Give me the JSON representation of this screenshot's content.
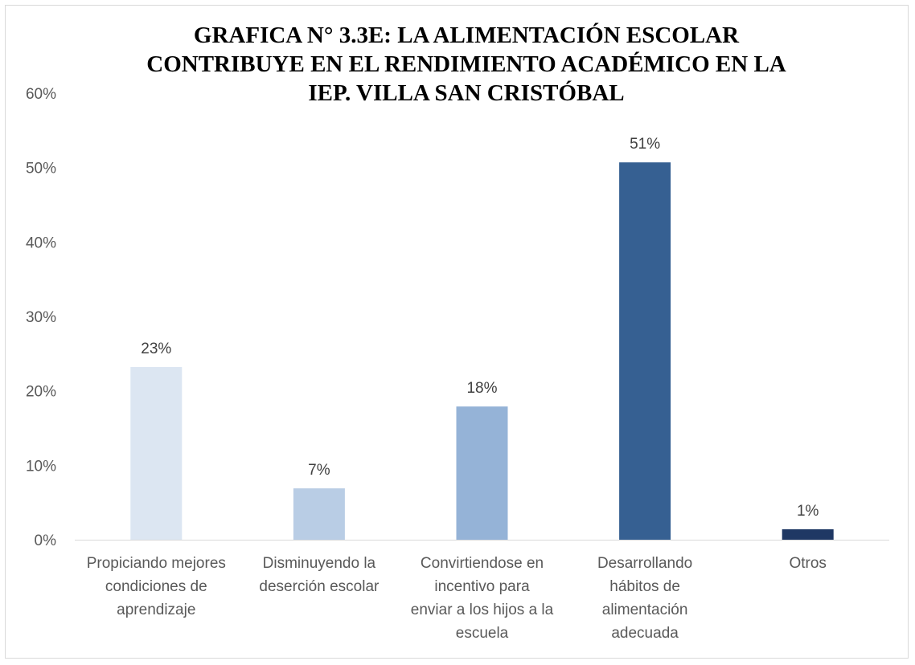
{
  "chart_data": {
    "type": "bar",
    "title_lines": [
      "GRAFICA N° 3.3E: LA ALIMENTACIÓN ESCOLAR",
      "CONTRIBUYE EN EL RENDIMIENTO ACADÉMICO EN LA",
      "IEP. VILLA SAN CRISTÓBAL"
    ],
    "categories": [
      [
        "Propiciando mejores",
        "condiciones de",
        "aprendizaje"
      ],
      [
        "Disminuyendo la",
        "deserción escolar"
      ],
      [
        "Convirtiendose en",
        "incentivo para",
        "enviar a los hijos a la",
        "escuela"
      ],
      [
        "Desarrollando",
        "hábitos de",
        "alimentación",
        "adecuada"
      ],
      [
        "Otros"
      ]
    ],
    "values": [
      23.2,
      6.9,
      17.9,
      50.7,
      1.4
    ],
    "data_labels": [
      "23%",
      "7%",
      "18%",
      "51%",
      "1%"
    ],
    "bar_colors": [
      "#dce6f2",
      "#b9cde5",
      "#95b3d7",
      "#366092",
      "#1f3864"
    ],
    "yticks": [
      "0%",
      "10%",
      "20%",
      "30%",
      "40%",
      "50%",
      "60%"
    ],
    "ylim": [
      0,
      60
    ],
    "grid": false,
    "legend": "none"
  }
}
